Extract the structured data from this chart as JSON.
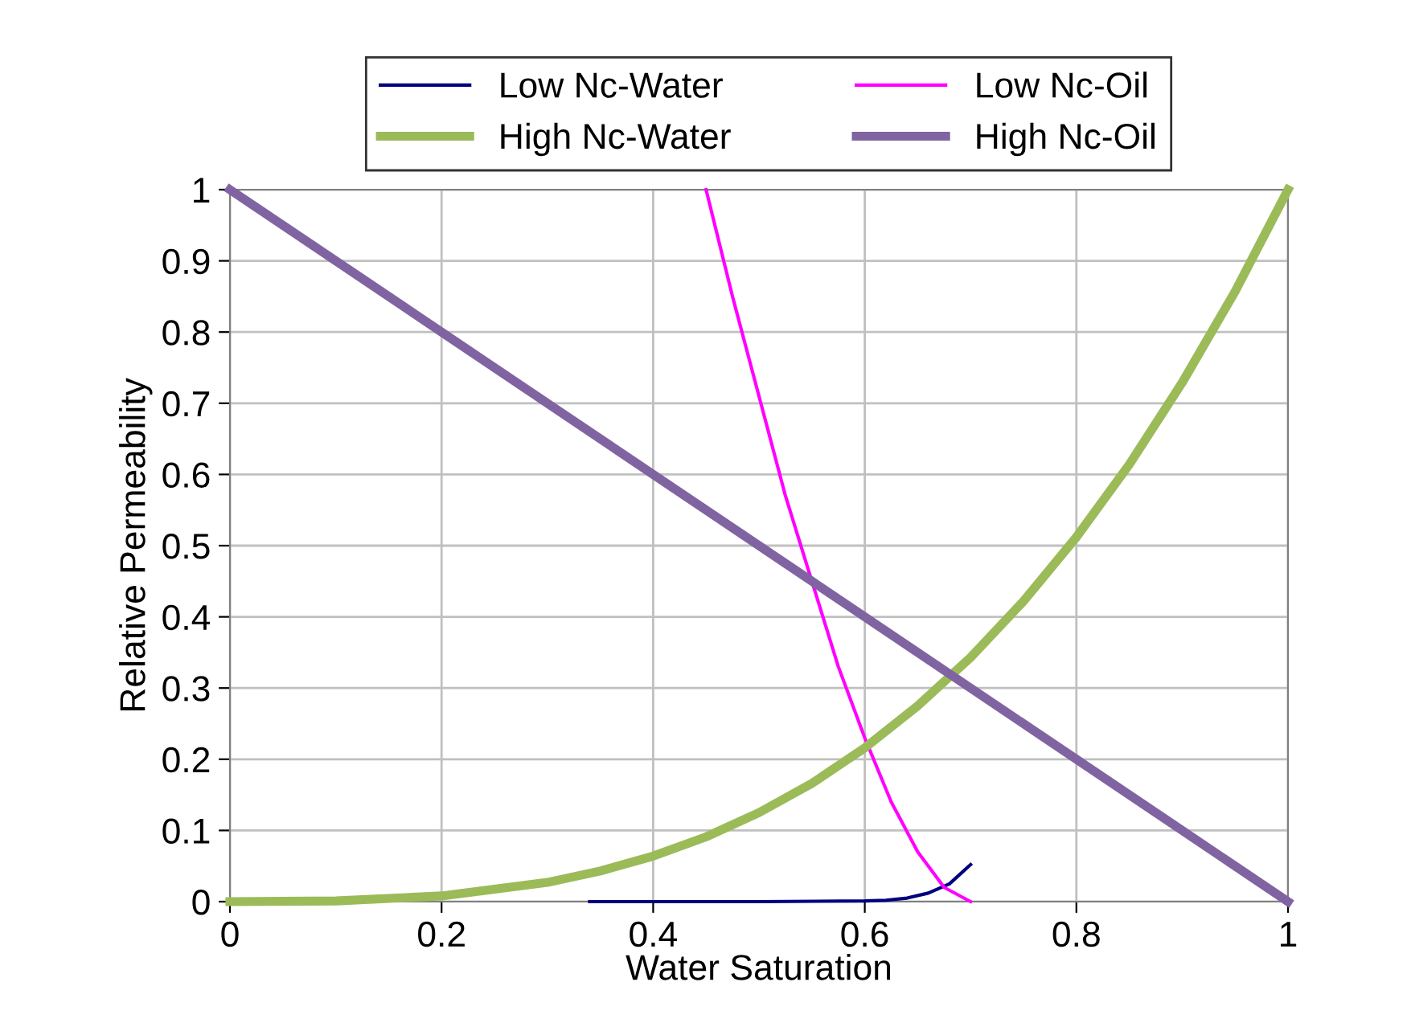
{
  "chart_data": {
    "type": "line",
    "xlabel": "Water Saturation",
    "ylabel": "Relative Permeability",
    "xlim": [
      0,
      1
    ],
    "ylim": [
      0,
      1
    ],
    "xticks": [
      0,
      0.2,
      0.4,
      0.6,
      0.8,
      1
    ],
    "yticks": [
      0,
      0.1,
      0.2,
      0.3,
      0.4,
      0.5,
      0.6,
      0.7,
      0.8,
      0.9,
      1
    ],
    "grid": true,
    "legend": "top",
    "marker": "none",
    "line_style": "solid",
    "series": [
      {
        "name": "Low Nc-Water",
        "color": "#000080",
        "x": [
          0.34,
          0.4,
          0.5,
          0.6,
          0.62,
          0.64,
          0.66,
          0.68,
          0.7
        ],
        "values": [
          0,
          0,
          0,
          0.001,
          0.002,
          0.005,
          0.012,
          0.025,
          0.052
        ]
      },
      {
        "name": "Low Nc-Oil",
        "color": "#ff00ff",
        "x": [
          0.45,
          0.475,
          0.5,
          0.525,
          0.55,
          0.575,
          0.6,
          0.625,
          0.65,
          0.675,
          0.7
        ],
        "values": [
          1,
          0.85,
          0.71,
          0.57,
          0.45,
          0.33,
          0.23,
          0.14,
          0.07,
          0.02,
          0
        ]
      },
      {
        "name": "High Nc-Water",
        "color": "#9bbb59",
        "x": [
          0,
          0.1,
          0.2,
          0.3,
          0.35,
          0.4,
          0.45,
          0.5,
          0.55,
          0.6,
          0.65,
          0.7,
          0.75,
          0.8,
          0.85,
          0.9,
          0.95,
          1
        ],
        "values": [
          0,
          0.001,
          0.008,
          0.027,
          0.043,
          0.064,
          0.091,
          0.125,
          0.166,
          0.216,
          0.275,
          0.343,
          0.422,
          0.512,
          0.614,
          0.729,
          0.857,
          1
        ]
      },
      {
        "name": "High Nc-Oil",
        "color": "#8064a2",
        "x": [
          0,
          1
        ],
        "values": [
          1,
          0
        ]
      }
    ]
  }
}
